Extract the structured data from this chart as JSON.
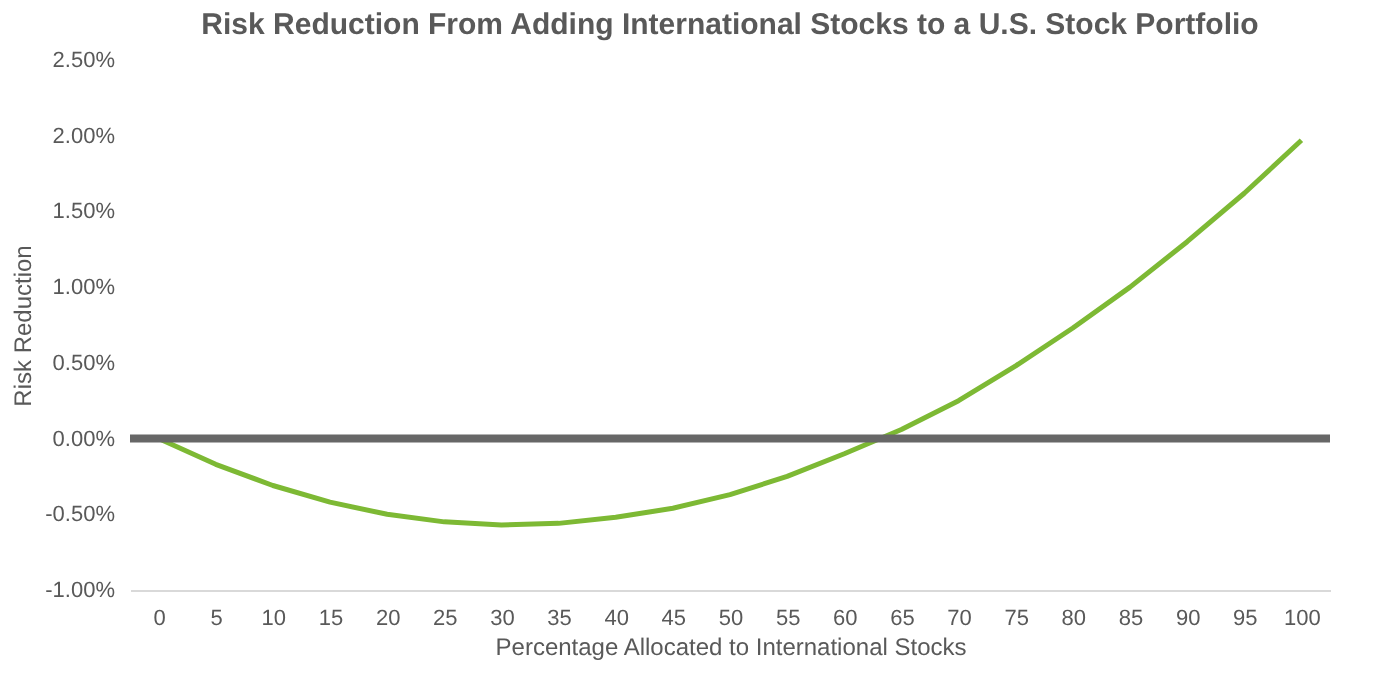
{
  "chart_data": {
    "type": "line",
    "title": "Risk Reduction From Adding International Stocks to a U.S. Stock Portfolio",
    "xlabel": "Percentage Allocated to International Stocks",
    "ylabel": "Risk Reduction",
    "categories": [
      "0",
      "5",
      "10",
      "15",
      "20",
      "25",
      "30",
      "35",
      "40",
      "45",
      "50",
      "55",
      "60",
      "65",
      "70",
      "75",
      "80",
      "85",
      "90",
      "95",
      "100"
    ],
    "series": [
      {
        "color": "#7db934",
        "values": [
          0,
          -0.17,
          -0.31,
          -0.42,
          -0.5,
          -0.55,
          -0.57,
          -0.56,
          -0.52,
          -0.46,
          -0.37,
          -0.25,
          -0.1,
          0.06,
          0.25,
          0.48,
          0.73,
          1.0,
          1.3,
          1.62,
          1.97
        ]
      }
    ],
    "ylim": [
      -1,
      2.5
    ],
    "yticks": [
      {
        "value": -1,
        "label": "-1.00%"
      },
      {
        "value": -0.5,
        "label": "-0.50%"
      },
      {
        "value": 0,
        "label": "0.00%"
      },
      {
        "value": 0.5,
        "label": "0.50%"
      },
      {
        "value": 1,
        "label": "1.00%"
      },
      {
        "value": 1.5,
        "label": "1.50%"
      },
      {
        "value": 2,
        "label": "2.00%"
      },
      {
        "value": 2.5,
        "label": "2.50%"
      }
    ],
    "ref_lines": [
      {
        "axis": "y",
        "value": 0,
        "color": "#676767"
      }
    ],
    "grid": false,
    "marker": "none",
    "line_style": "solid"
  }
}
